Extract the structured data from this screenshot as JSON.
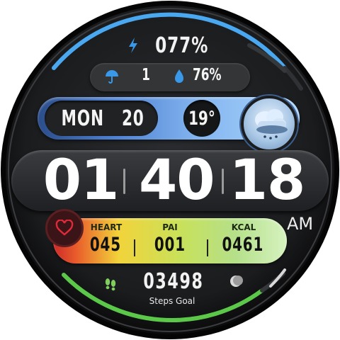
{
  "battery": {
    "value": "077%",
    "icon": "lightning-bolt-icon",
    "color": "#3a98e8"
  },
  "weather": {
    "rain_icon": "umbrella-icon",
    "rain_value": "1",
    "humidity_icon": "water-drop-icon",
    "humidity_value": "76%",
    "temperature": "19°",
    "condition_icon": "cloud-rain-icon"
  },
  "date": {
    "day": "MON",
    "number": "20"
  },
  "time": {
    "hours": "01",
    "minutes": "40",
    "seconds": "18",
    "period": "AM"
  },
  "health": {
    "icon": "heart-icon",
    "heart_label": "HEART",
    "heart_value": "045",
    "pai_label": "PAI",
    "pai_value": "001",
    "kcal_label": "KCAL",
    "kcal_value": "0461"
  },
  "steps": {
    "icon": "footprints-icon",
    "value": "03498",
    "label": "Steps Goal",
    "goal_icon": "moon-icon"
  },
  "colors": {
    "accent_blue": "#4aa8f0",
    "accent_green": "#5cc84a",
    "bezel": "#141516"
  }
}
